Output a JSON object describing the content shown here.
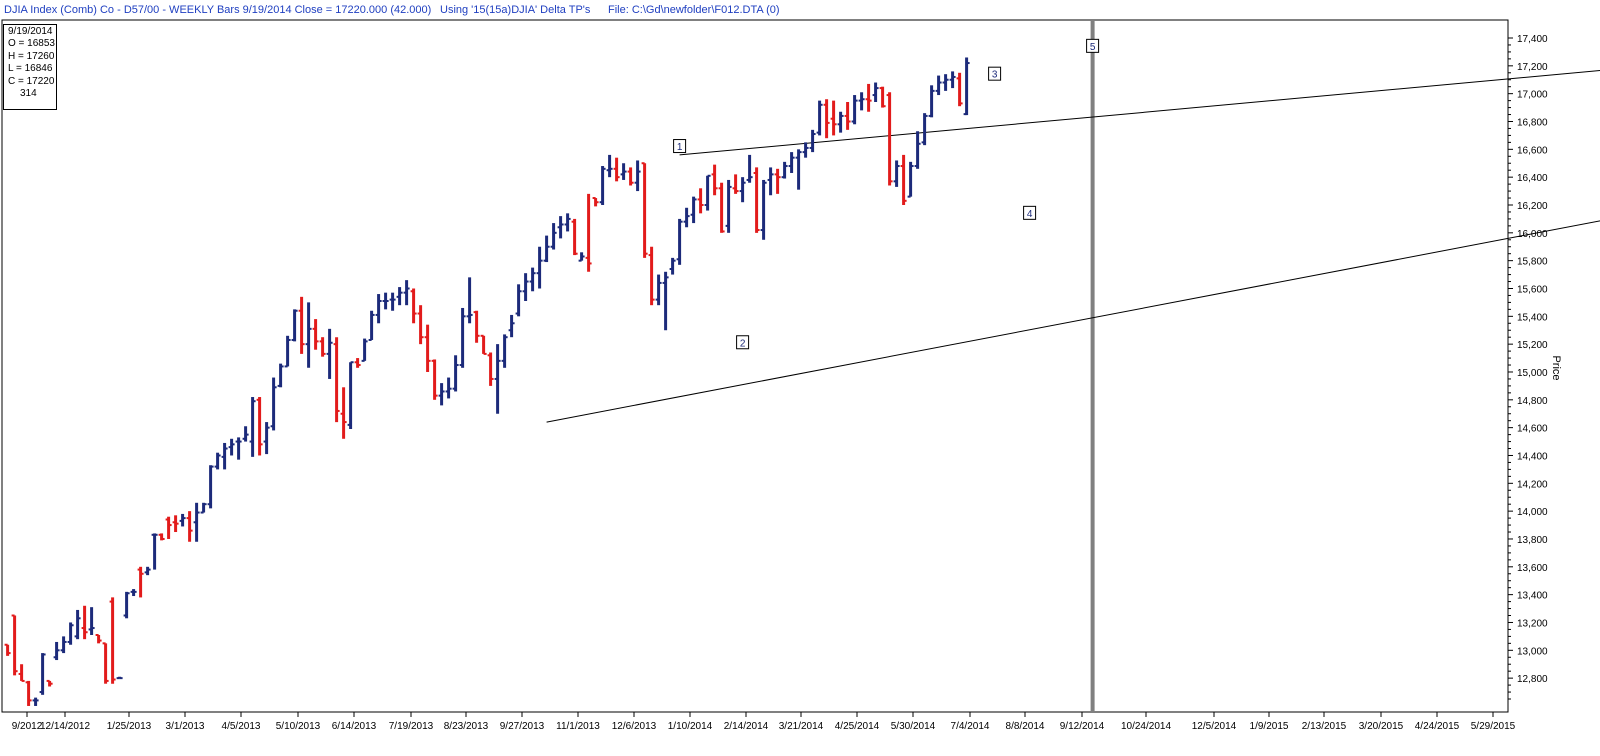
{
  "header": {
    "title": "DJIA Index (Comb) Co - D57/00  - WEEKLY Bars  9/19/2014 Close = 17220.000 (42.000)",
    "study": "Using '15(15a)DJIA' Delta TP's",
    "file": "File: C:\\Gd\\newfolder\\F012.DTA (0)"
  },
  "ohlc_box": {
    "date": "9/19/2014",
    "open": "O = 16853",
    "high": "H = 17260",
    "low": "L = 16846",
    "close": "C = 17220",
    "count": "314"
  },
  "chart_data": {
    "type": "bar",
    "subtype": "ohlc",
    "ylabel": "Price",
    "ylim": [
      12600,
      17500
    ],
    "yticks": [
      12800,
      13000,
      13200,
      13400,
      13600,
      13800,
      14000,
      14200,
      14400,
      14600,
      14800,
      15000,
      15200,
      15400,
      15600,
      15800,
      16000,
      16200,
      16400,
      16600,
      16800,
      17000,
      17200,
      17400
    ],
    "xtick_labels": [
      "9/2012",
      "12/14/2012",
      "1/25/2013",
      "3/1/2013",
      "4/5/2013",
      "5/10/2013",
      "6/14/2013",
      "7/19/2013",
      "8/23/2013",
      "9/27/2013",
      "11/1/2013",
      "12/6/2013",
      "1/10/2014",
      "2/14/2014",
      "3/21/2014",
      "4/25/2014",
      "5/30/2014",
      "7/4/2014",
      "8/8/2014",
      "9/12/2014",
      "10/24/2014",
      "12/5/2014",
      "1/9/2015",
      "2/13/2015",
      "3/20/2015",
      "4/24/2015",
      "5/29/2015"
    ],
    "colors": {
      "up": "#1c2a7a",
      "down": "#e21b1b",
      "cursor": "#808080"
    },
    "bars": [
      [
        13040,
        13040,
        12960,
        12980
      ],
      [
        13250,
        13250,
        12820,
        12850
      ],
      [
        12830,
        12900,
        12780,
        12780
      ],
      [
        12770,
        12780,
        12600,
        12640
      ],
      [
        12640,
        12660,
        12600,
        12640
      ],
      [
        12700,
        12980,
        12680,
        12970
      ],
      [
        12780,
        12780,
        12740,
        12760
      ],
      [
        12950,
        13060,
        12930,
        13000
      ],
      [
        13000,
        13100,
        12980,
        13060
      ],
      [
        13060,
        13200,
        13040,
        13180
      ],
      [
        13100,
        13290,
        13080,
        13230
      ],
      [
        13160,
        13320,
        13080,
        13130
      ],
      [
        13150,
        13310,
        13110,
        13160
      ],
      [
        13110,
        13110,
        13050,
        13070
      ],
      [
        13050,
        13050,
        12760,
        12780
      ],
      [
        13350,
        13380,
        12760,
        12790
      ],
      [
        12800,
        12810,
        12800,
        12800
      ],
      [
        13250,
        13420,
        13230,
        13410
      ],
      [
        13420,
        13440,
        13390,
        13420
      ],
      [
        13580,
        13600,
        13380,
        13550
      ],
      [
        13560,
        13600,
        13540,
        13580
      ],
      [
        13830,
        13840,
        13580,
        13830
      ],
      [
        13830,
        13840,
        13790,
        13800
      ],
      [
        13940,
        13960,
        13800,
        13900
      ],
      [
        13920,
        13970,
        13850,
        13910
      ],
      [
        13930,
        13980,
        13890,
        13950
      ],
      [
        13950,
        14000,
        13780,
        13860
      ],
      [
        13920,
        14060,
        13780,
        13990
      ],
      [
        13990,
        14060,
        13990,
        14050
      ],
      [
        14050,
        14330,
        14020,
        14320
      ],
      [
        14320,
        14420,
        14300,
        14400
      ],
      [
        14390,
        14490,
        14300,
        14450
      ],
      [
        14460,
        14520,
        14400,
        14480
      ],
      [
        14500,
        14530,
        14370,
        14500
      ],
      [
        14520,
        14610,
        14500,
        14550
      ],
      [
        14500,
        14820,
        14390,
        14790
      ],
      [
        14800,
        14820,
        14400,
        14480
      ],
      [
        14500,
        14640,
        14410,
        14600
      ],
      [
        14610,
        14960,
        14580,
        14890
      ],
      [
        14900,
        15060,
        14890,
        15040
      ],
      [
        15040,
        15260,
        15040,
        15230
      ],
      [
        15230,
        15450,
        15220,
        15440
      ],
      [
        15440,
        15540,
        15130,
        15200
      ],
      [
        15200,
        15500,
        15030,
        15310
      ],
      [
        15310,
        15380,
        15160,
        15220
      ],
      [
        15220,
        15250,
        15110,
        15130
      ],
      [
        15130,
        15310,
        14950,
        15210
      ],
      [
        15200,
        15250,
        14640,
        14720
      ],
      [
        14700,
        14890,
        14520,
        14640
      ],
      [
        14620,
        15070,
        14590,
        15070
      ],
      [
        15070,
        15100,
        15030,
        15050
      ],
      [
        15080,
        15240,
        15080,
        15220
      ],
      [
        15230,
        15440,
        15230,
        15410
      ],
      [
        15410,
        15560,
        15350,
        15510
      ],
      [
        15510,
        15570,
        15450,
        15510
      ],
      [
        15520,
        15570,
        15440,
        15520
      ],
      [
        15540,
        15610,
        15480,
        15570
      ],
      [
        15570,
        15660,
        15480,
        15600
      ],
      [
        15580,
        15600,
        15350,
        15420
      ],
      [
        15420,
        15480,
        15200,
        15250
      ],
      [
        15250,
        15340,
        15000,
        15080
      ],
      [
        15080,
        15090,
        14800,
        14830
      ],
      [
        14830,
        14920,
        14760,
        14860
      ],
      [
        14860,
        14960,
        14810,
        14880
      ],
      [
        14880,
        15120,
        14860,
        15050
      ],
      [
        15050,
        15460,
        15030,
        15400
      ],
      [
        15400,
        15680,
        15350,
        15410
      ],
      [
        15430,
        15440,
        15210,
        15260
      ],
      [
        15260,
        15260,
        15130,
        15130
      ],
      [
        15120,
        15140,
        14900,
        14950
      ],
      [
        14950,
        15200,
        14700,
        15080
      ],
      [
        15080,
        15270,
        15030,
        15250
      ],
      [
        15300,
        15410,
        15250,
        15350
      ],
      [
        15420,
        15630,
        15400,
        15580
      ],
      [
        15580,
        15710,
        15510,
        15650
      ],
      [
        15650,
        15750,
        15580,
        15710
      ],
      [
        15710,
        15900,
        15600,
        15800
      ],
      [
        15800,
        15980,
        15790,
        15900
      ],
      [
        15900,
        16070,
        15880,
        16000
      ],
      [
        16040,
        16120,
        15960,
        16060
      ],
      [
        16060,
        16140,
        16010,
        16100
      ],
      [
        16080,
        16100,
        15840,
        15850
      ],
      [
        15800,
        15860,
        15800,
        15830
      ],
      [
        15820,
        16280,
        15720,
        15780
      ],
      [
        16250,
        16250,
        16190,
        16220
      ],
      [
        16220,
        16480,
        16200,
        16460
      ],
      [
        16450,
        16560,
        16400,
        16460
      ],
      [
        16460,
        16540,
        16370,
        16400
      ],
      [
        16420,
        16500,
        16380,
        16440
      ],
      [
        16440,
        16470,
        16340,
        16360
      ],
      [
        16360,
        16520,
        16300,
        16440
      ],
      [
        16500,
        16500,
        15820,
        15850
      ],
      [
        15840,
        15900,
        15480,
        15520
      ],
      [
        15520,
        15700,
        15480,
        15640
      ],
      [
        15640,
        15720,
        15300,
        15680
      ],
      [
        15740,
        15820,
        15700,
        15800
      ],
      [
        15810,
        16100,
        15770,
        16080
      ],
      [
        16080,
        16180,
        16040,
        16120
      ],
      [
        16130,
        16260,
        16070,
        16240
      ],
      [
        16240,
        16320,
        16140,
        16200
      ],
      [
        16200,
        16410,
        16160,
        16410
      ],
      [
        16420,
        16490,
        16270,
        16320
      ],
      [
        16320,
        16360,
        16000,
        16010
      ],
      [
        16050,
        16380,
        16000,
        16330
      ],
      [
        16320,
        16420,
        16280,
        16300
      ],
      [
        16300,
        16400,
        16220,
        16360
      ],
      [
        16380,
        16560,
        16360,
        16400
      ],
      [
        16430,
        16470,
        16000,
        16020
      ],
      [
        16020,
        16380,
        15950,
        16360
      ],
      [
        16380,
        16470,
        16270,
        16420
      ],
      [
        16420,
        16460,
        16280,
        16400
      ],
      [
        16400,
        16510,
        16390,
        16480
      ],
      [
        16480,
        16580,
        16430,
        16540
      ],
      [
        16540,
        16600,
        16310,
        16580
      ],
      [
        16580,
        16650,
        16540,
        16610
      ],
      [
        16610,
        16740,
        16580,
        16710
      ],
      [
        16720,
        16950,
        16700,
        16920
      ],
      [
        16920,
        16960,
        16680,
        16790
      ],
      [
        16820,
        16950,
        16700,
        16780
      ],
      [
        16780,
        16870,
        16720,
        16840
      ],
      [
        16840,
        16940,
        16740,
        16800
      ],
      [
        16800,
        16990,
        16780,
        16950
      ],
      [
        16950,
        17010,
        16880,
        16960
      ],
      [
        16960,
        17070,
        16870,
        16950
      ],
      [
        16990,
        17080,
        16940,
        17040
      ],
      [
        17040,
        17050,
        16900,
        16910
      ],
      [
        16990,
        17010,
        16340,
        16370
      ],
      [
        16370,
        16520,
        16330,
        16480
      ],
      [
        16480,
        16560,
        16200,
        16230
      ],
      [
        16260,
        16510,
        16260,
        16480
      ],
      [
        16480,
        16730,
        16460,
        16640
      ],
      [
        16650,
        16860,
        16630,
        16840
      ],
      [
        16840,
        17060,
        16830,
        17020
      ],
      [
        17020,
        17130,
        16990,
        17080
      ],
      [
        17080,
        17140,
        17020,
        17100
      ],
      [
        17100,
        17160,
        17040,
        17120
      ],
      [
        17110,
        17150,
        16910,
        16930
      ],
      [
        16853,
        17260,
        16846,
        17220
      ]
    ],
    "trendlines": [
      {
        "from_bar": 96,
        "from_price": 16560,
        "to_bar": 289,
        "to_price": 17450
      },
      {
        "from_bar": 77,
        "from_price": 14640,
        "to_bar": 282,
        "to_price": 16610
      }
    ],
    "annotations": [
      {
        "label": "1",
        "bar": 96,
        "price": 16620
      },
      {
        "label": "2",
        "bar": 105,
        "price": 15210
      },
      {
        "label": "3",
        "bar": 141,
        "price": 17140
      },
      {
        "label": "4",
        "bar": 146,
        "price": 16140
      },
      {
        "label": "5",
        "bar": 155,
        "price": 17340
      }
    ],
    "cursor_bar": 155
  }
}
